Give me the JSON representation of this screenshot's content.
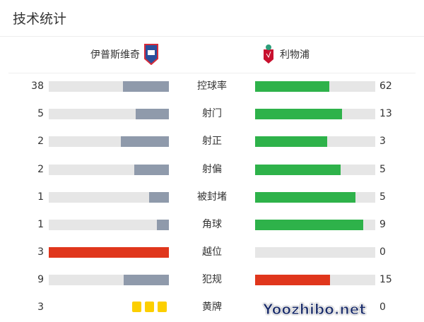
{
  "title": "技术统计",
  "home": {
    "name": "伊普斯维奇",
    "crest": "ipswich-crest-icon"
  },
  "away": {
    "name": "利物浦",
    "crest": "liverpool-crest-icon"
  },
  "colors": {
    "neutral": "#8f9aab",
    "green": "#2eb24a",
    "red": "#e0361c",
    "track": "#e6e6e6",
    "card": "#fccf00"
  },
  "stats": [
    {
      "name": "控球率",
      "home": "38",
      "away": "62",
      "home_color": "neutral",
      "away_color": "green"
    },
    {
      "name": "射门",
      "home": "5",
      "away": "13",
      "home_color": "neutral",
      "away_color": "green"
    },
    {
      "name": "射正",
      "home": "2",
      "away": "3",
      "home_color": "neutral",
      "away_color": "green"
    },
    {
      "name": "射偏",
      "home": "2",
      "away": "5",
      "home_color": "neutral",
      "away_color": "green"
    },
    {
      "name": "被封堵",
      "home": "1",
      "away": "5",
      "home_color": "neutral",
      "away_color": "green"
    },
    {
      "name": "角球",
      "home": "1",
      "away": "9",
      "home_color": "neutral",
      "away_color": "green"
    },
    {
      "name": "越位",
      "home": "3",
      "away": "0",
      "home_color": "red",
      "away_color": "green"
    },
    {
      "name": "犯规",
      "home": "9",
      "away": "15",
      "home_color": "neutral",
      "away_color": "red"
    }
  ],
  "yellow": {
    "name": "黄牌",
    "home": "3",
    "away": "0",
    "home_cards": 3
  },
  "watermark": "Yoozhibo.net"
}
